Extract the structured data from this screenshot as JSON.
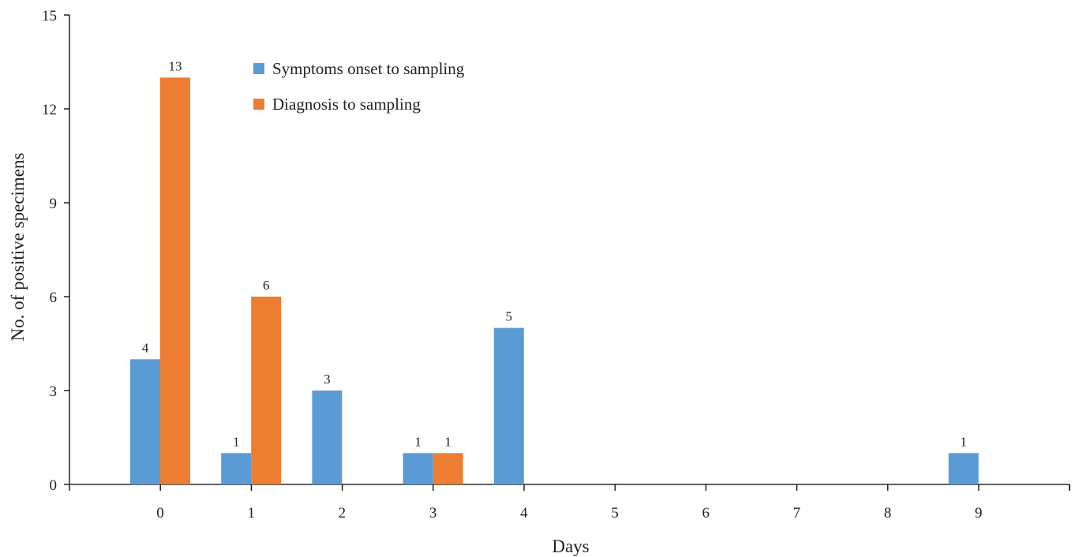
{
  "chart_data": {
    "type": "bar",
    "title": "",
    "xlabel": "Days",
    "ylabel": "No. of positive specimens",
    "categories": [
      "0",
      "1",
      "2",
      "3",
      "4",
      "5",
      "6",
      "7",
      "8",
      "9"
    ],
    "ylim": [
      0,
      15
    ],
    "yticks": [
      0,
      3,
      6,
      9,
      12,
      15
    ],
    "grid": false,
    "legend_position": "top-left",
    "series": [
      {
        "name": "Symptoms onset to sampling",
        "color": "#5b9bd5",
        "values": [
          4,
          1,
          3,
          1,
          5,
          null,
          null,
          null,
          null,
          1
        ]
      },
      {
        "name": "Diagnosis to sampling",
        "color": "#ed7d31",
        "values": [
          13,
          6,
          null,
          1,
          null,
          null,
          null,
          null,
          null,
          null
        ]
      }
    ]
  }
}
